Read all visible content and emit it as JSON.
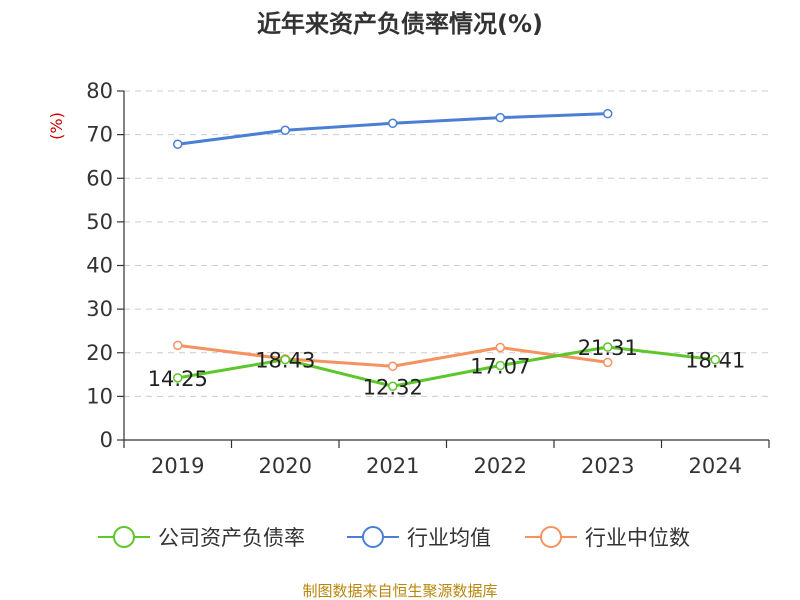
{
  "chart_data": {
    "type": "line",
    "title": "近年来资产负债率情况(%)",
    "ylabel": "(%)",
    "xlabel": "",
    "categories": [
      "2019",
      "2020",
      "2021",
      "2022",
      "2023",
      "2024"
    ],
    "ylim": [
      0,
      80
    ],
    "yticks": [
      0,
      10,
      20,
      30,
      40,
      50,
      60,
      70,
      80
    ],
    "grid": true,
    "legend_position": "bottom",
    "series": [
      {
        "name": "公司资产负债率",
        "color": "#5cc72a",
        "values": [
          14.25,
          18.43,
          12.32,
          17.07,
          21.31,
          18.41
        ],
        "labels": [
          "14.25",
          "18.43",
          "12.32",
          "17.07",
          "21.31",
          "18.41"
        ]
      },
      {
        "name": "行业均值",
        "color": "#4a7fd4",
        "values": [
          67.8,
          71.0,
          72.6,
          73.9,
          74.8,
          null
        ]
      },
      {
        "name": "行业中位数",
        "color": "#f4935f",
        "values": [
          21.7,
          18.6,
          16.9,
          21.2,
          17.8,
          null
        ]
      }
    ],
    "source": "制图数据来自恒生聚源数据库"
  }
}
